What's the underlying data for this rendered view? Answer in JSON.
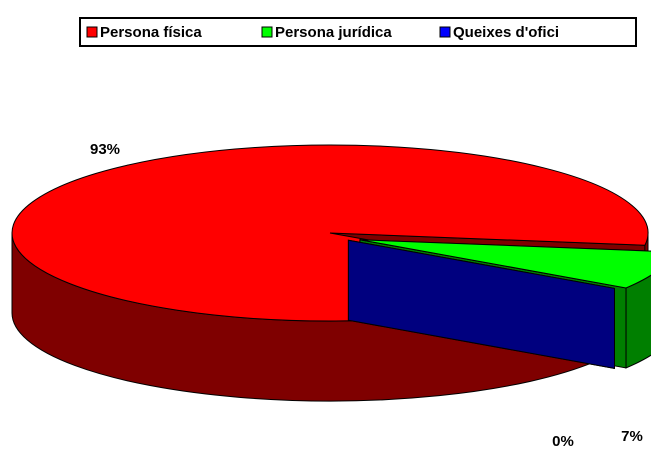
{
  "chart_data": {
    "type": "pie",
    "categories": [
      "Persona física",
      "Persona jurídica",
      "Queixes d'ofici"
    ],
    "values": [
      93,
      7,
      0
    ],
    "value_labels": [
      "93%",
      "7%",
      "0%"
    ],
    "colors": [
      "#ff0000",
      "#00ff00",
      "#0000ff"
    ],
    "legend": "top"
  }
}
